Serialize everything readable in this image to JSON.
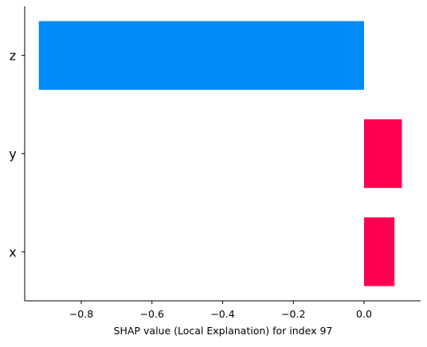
{
  "chart_data": {
    "type": "bar",
    "orientation": "horizontal",
    "categories": [
      "z",
      "y",
      "x"
    ],
    "values": [
      -0.92,
      0.107,
      0.086
    ],
    "xlabel": "SHAP value (Local Explanation) for index 97",
    "ylabel": "",
    "xlim": [
      -0.96,
      0.16
    ],
    "xticks": [
      -0.8,
      -0.6,
      -0.4,
      -0.2,
      0.0
    ],
    "xtick_labels": [
      "−0.8",
      "−0.6",
      "−0.4",
      "−0.2",
      "0.0"
    ],
    "grid": false,
    "colors": {
      "negative": "#008bfb",
      "positive": "#ff0051",
      "axis": "#000000"
    }
  }
}
